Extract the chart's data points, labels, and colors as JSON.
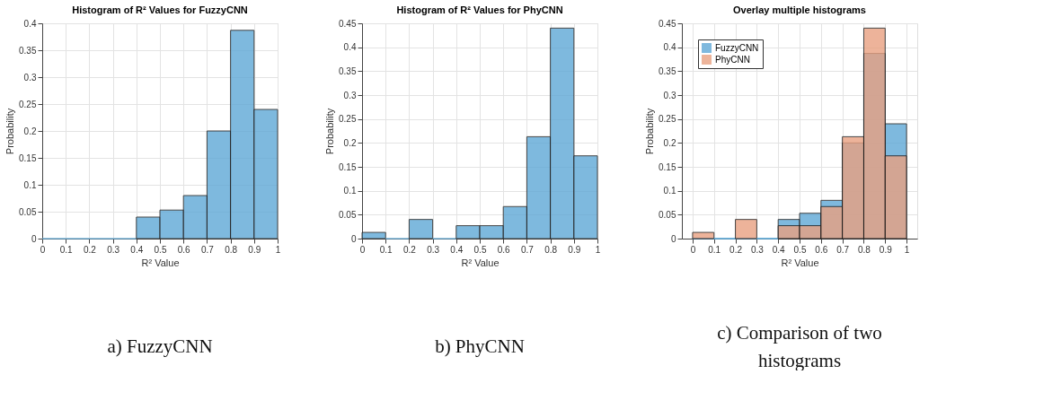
{
  "chart_data": [
    {
      "type": "histogram",
      "title": "Histogram of R² Values for FuzzyCNN",
      "xlabel": "R² Value",
      "ylabel": "Probability",
      "bins": [
        0,
        0.1,
        0.2,
        0.3,
        0.4,
        0.5,
        0.6,
        0.7,
        0.8,
        0.9,
        1
      ],
      "series": [
        {
          "color": "#5fa8d6",
          "values": [
            0,
            0,
            0,
            0,
            0.04,
            0.053,
            0.08,
            0.2,
            0.387,
            0.24
          ]
        }
      ],
      "xlim": [
        0,
        1
      ],
      "ylim": [
        0,
        0.4
      ],
      "xticks": [
        0,
        0.1,
        0.2,
        0.3,
        0.4,
        0.5,
        0.6,
        0.7,
        0.8,
        0.9,
        1
      ],
      "yticks": [
        0,
        0.05,
        0.1,
        0.15,
        0.2,
        0.25,
        0.3,
        0.35,
        0.4
      ],
      "grid": true,
      "annotations": [
        "a) FuzzyCNN"
      ]
    },
    {
      "type": "histogram",
      "title": "Histogram of R² Values for PhyCNN",
      "xlabel": "R² Value",
      "ylabel": "Probability",
      "bins": [
        0,
        0.1,
        0.2,
        0.3,
        0.4,
        0.5,
        0.6,
        0.7,
        0.8,
        0.9,
        1
      ],
      "series": [
        {
          "color": "#5fa8d6",
          "values": [
            0.013,
            0,
            0.04,
            0,
            0.027,
            0.027,
            0.067,
            0.213,
            0.44,
            0.173
          ]
        }
      ],
      "xlim": [
        0,
        1
      ],
      "ylim": [
        0,
        0.45
      ],
      "xticks": [
        0,
        0.1,
        0.2,
        0.3,
        0.4,
        0.5,
        0.6,
        0.7,
        0.8,
        0.9,
        1
      ],
      "yticks": [
        0,
        0.05,
        0.1,
        0.15,
        0.2,
        0.25,
        0.3,
        0.35,
        0.4,
        0.45
      ],
      "grid": true,
      "annotations": [
        "b) PhyCNN"
      ]
    },
    {
      "type": "histogram",
      "title": "Overlay multiple histograms",
      "xlabel": "R² Value",
      "ylabel": "Probability",
      "bins": [
        0,
        0.1,
        0.2,
        0.3,
        0.4,
        0.5,
        0.6,
        0.7,
        0.8,
        0.9,
        1
      ],
      "series": [
        {
          "name": "FuzzyCNN",
          "color": "#5fa8d6",
          "values": [
            0,
            0,
            0,
            0,
            0.04,
            0.053,
            0.08,
            0.2,
            0.387,
            0.24
          ]
        },
        {
          "name": "PhyCNN",
          "color": "#e9a181",
          "values": [
            0.013,
            0,
            0.04,
            0,
            0.027,
            0.027,
            0.067,
            0.213,
            0.44,
            0.173
          ]
        }
      ],
      "xlim": [
        -0.05,
        1.05
      ],
      "ylim": [
        0,
        0.45
      ],
      "xticks": [
        0,
        0.1,
        0.2,
        0.3,
        0.4,
        0.5,
        0.6,
        0.7,
        0.8,
        0.9,
        1
      ],
      "yticks": [
        0,
        0.05,
        0.1,
        0.15,
        0.2,
        0.25,
        0.3,
        0.35,
        0.4,
        0.45
      ],
      "grid": true,
      "legend": "top left",
      "annotations": [
        "c) Comparison of two histograms"
      ]
    }
  ]
}
